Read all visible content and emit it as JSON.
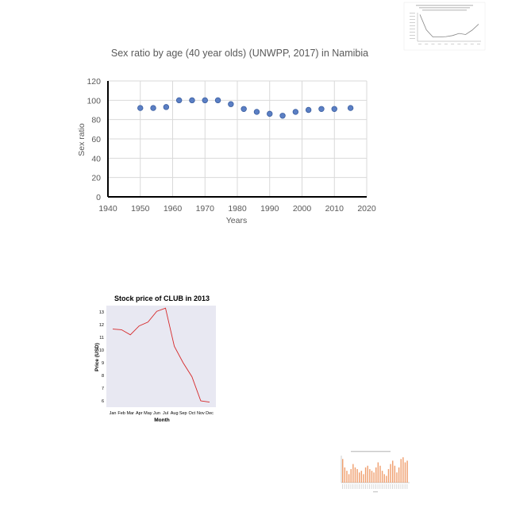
{
  "chart_data": [
    {
      "id": "sex-ratio",
      "type": "scatter",
      "title": "Sex ratio by age (40 year olds) (UNWPP, 2017) in Namibia",
      "xlabel": "Years",
      "ylabel": "Sex ratio",
      "xlim": [
        1940,
        2020
      ],
      "ylim": [
        0,
        120
      ],
      "xticks": [
        1940,
        1950,
        1960,
        1970,
        1980,
        1990,
        2000,
        2010,
        2020
      ],
      "yticks": [
        0,
        20,
        40,
        60,
        80,
        100,
        120
      ],
      "grid": true,
      "color": "#5b7fc4",
      "x": [
        1950,
        1954,
        1958,
        1962,
        1966,
        1970,
        1974,
        1978,
        1982,
        1986,
        1990,
        1994,
        1998,
        2002,
        2006,
        2010,
        2015
      ],
      "y": [
        92,
        92,
        93,
        100,
        100,
        100,
        100,
        96,
        91,
        88,
        86,
        84,
        88,
        90,
        91,
        91,
        92
      ]
    },
    {
      "id": "club-stock",
      "type": "line",
      "title": "Stock price of CLUB in 2013",
      "xlabel": "Month",
      "ylabel": "Price (USD)",
      "categories": [
        "Jan",
        "Feb",
        "Mar",
        "Apr",
        "May",
        "Jun",
        "Jul",
        "Aug",
        "Sep",
        "Oct",
        "Nov",
        "Dec"
      ],
      "yticks": [
        6,
        7,
        8,
        9,
        10,
        11,
        12,
        13
      ],
      "ylim": [
        5.5,
        13.5
      ],
      "color": "#d62728",
      "background": "#e8e8f2",
      "values": [
        11.65,
        11.6,
        11.2,
        11.9,
        12.2,
        13.05,
        13.3,
        10.3,
        9.0,
        7.9,
        6.0,
        5.9
      ]
    },
    {
      "id": "thumbnail-line",
      "type": "line",
      "title": "",
      "color": "#888888",
      "values": [
        9.5,
        5.2,
        3.2,
        3.2,
        3.3,
        3.6,
        4.2,
        3.9,
        5.1,
        6.8
      ]
    },
    {
      "id": "thumbnail-bar",
      "type": "bar",
      "title": "",
      "color": "#f0a070",
      "values": [
        14,
        9,
        7,
        5,
        8,
        11,
        9,
        8,
        6,
        7,
        5,
        9,
        10,
        8,
        7,
        6,
        9,
        12,
        10,
        7,
        5,
        4,
        8,
        11,
        13,
        10,
        6,
        9,
        14,
        15,
        12,
        13
      ]
    }
  ]
}
